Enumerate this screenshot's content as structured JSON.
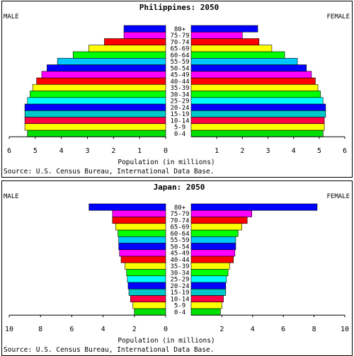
{
  "charts": [
    {
      "title": "Philippines: 2050",
      "male_label": "MALE",
      "female_label": "FEMALE",
      "xlabel": "Population (in millions)",
      "source": "Source: U.S. Census Bureau, International Data Base."
    },
    {
      "title": "Japan: 2050",
      "male_label": "MALE",
      "female_label": "FEMALE",
      "xlabel": "Population (in millions)",
      "source": "Source: U.S. Census Bureau, International Data Base."
    }
  ],
  "chart_data": [
    {
      "type": "bar",
      "subtype": "population-pyramid",
      "title": "Philippines: 2050",
      "xlabel": "Population (in millions)",
      "xlim": [
        0,
        6
      ],
      "x_ticks": [
        6,
        5,
        4,
        3,
        2,
        1,
        0,
        1,
        2,
        3,
        4,
        5,
        6
      ],
      "categories": [
        "0-4",
        "5-9",
        "10-14",
        "15-19",
        "20-24",
        "25-29",
        "30-34",
        "35-39",
        "40-44",
        "45-49",
        "50-54",
        "55-59",
        "60-64",
        "65-69",
        "70-74",
        "75-79",
        "80+"
      ],
      "series": [
        {
          "name": "MALE",
          "values": [
            5.3,
            5.4,
            5.4,
            5.4,
            5.4,
            5.3,
            5.2,
            5.1,
            4.95,
            4.75,
            4.55,
            4.15,
            3.55,
            2.95,
            2.35,
            1.6,
            1.6
          ]
        },
        {
          "name": "FEMALE",
          "values": [
            5.15,
            5.2,
            5.2,
            5.25,
            5.25,
            5.15,
            5.05,
            4.95,
            4.85,
            4.7,
            4.5,
            4.15,
            3.65,
            3.15,
            2.65,
            2.0,
            2.6
          ]
        }
      ],
      "bar_colors": [
        "#00e000",
        "#ffff00",
        "#ff0044",
        "#00c8c8",
        "#0000ff",
        "#00ffff",
        "#00ff00",
        "#ffff00",
        "#ff0000",
        "#ff00ff",
        "#0000ff",
        "#00c8ff",
        "#00ff00",
        "#ffff00",
        "#ff0000",
        "#ff00ff",
        "#0000ff"
      ]
    },
    {
      "type": "bar",
      "subtype": "population-pyramid",
      "title": "Japan: 2050",
      "xlabel": "Population (in millions)",
      "xlim": [
        0,
        10
      ],
      "x_ticks": [
        10,
        8,
        6,
        4,
        2,
        0,
        2,
        4,
        6,
        8,
        10
      ],
      "categories": [
        "0-4",
        "5-9",
        "10-14",
        "15-19",
        "20-24",
        "25-29",
        "30-34",
        "35-39",
        "40-44",
        "45-49",
        "50-54",
        "55-59",
        "60-64",
        "65-69",
        "70-74",
        "75-79",
        "80+"
      ],
      "series": [
        {
          "name": "MALE",
          "values": [
            2.0,
            2.1,
            2.25,
            2.35,
            2.4,
            2.45,
            2.5,
            2.6,
            2.85,
            2.95,
            3.0,
            3.0,
            3.05,
            3.2,
            3.4,
            3.4,
            4.9
          ]
        },
        {
          "name": "FEMALE",
          "values": [
            1.9,
            2.0,
            2.1,
            2.25,
            2.25,
            2.3,
            2.4,
            2.5,
            2.75,
            2.85,
            2.9,
            2.9,
            3.05,
            3.3,
            3.65,
            3.95,
            8.2
          ]
        }
      ],
      "bar_colors": [
        "#00e000",
        "#ffff00",
        "#ff0044",
        "#00c8c8",
        "#0000ff",
        "#00ffff",
        "#00ff00",
        "#ffff00",
        "#ff0000",
        "#ff00ff",
        "#0000ff",
        "#00c8ff",
        "#00ff00",
        "#ffff00",
        "#ff0000",
        "#ff00ff",
        "#0000ff"
      ]
    }
  ]
}
